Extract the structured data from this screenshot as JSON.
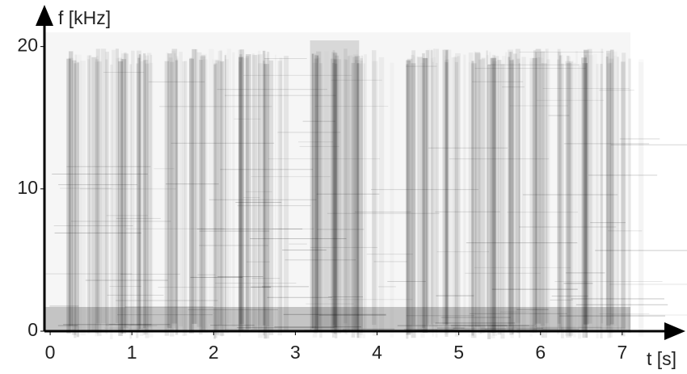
{
  "chart_data": {
    "type": "spectrogram",
    "xlabel": "t [s]",
    "ylabel": "f [kHz]",
    "xlim": [
      -0.07,
      7.1
    ],
    "xticks": [
      0,
      1,
      2,
      3,
      4,
      5,
      6,
      7
    ],
    "ylim": [
      0,
      21
    ],
    "yticks": [
      0,
      10,
      20
    ],
    "color": "#000000"
  }
}
